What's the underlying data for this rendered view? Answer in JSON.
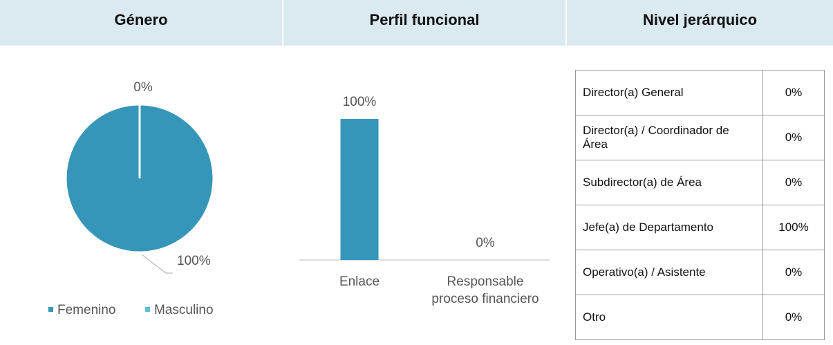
{
  "chart_data": [
    {
      "type": "pie",
      "title": "Género",
      "categories": [
        "Femenino",
        "Masculino"
      ],
      "values": [
        100,
        0
      ],
      "value_labels": [
        "100%",
        "0%"
      ],
      "colors": [
        "#3596b9",
        "#5dbfd0"
      ],
      "legend": "bottom"
    },
    {
      "type": "bar",
      "title": "Perfil funcional",
      "categories": [
        "Enlace",
        "Responsable proceso financiero"
      ],
      "values": [
        100,
        0
      ],
      "value_labels": [
        "100%",
        "0%"
      ],
      "color": "#3596b9"
    }
  ],
  "table": {
    "title": "Nivel jerárquico",
    "rows": [
      [
        "Director(a) General",
        "0%"
      ],
      [
        "Director(a) / Coordinador de Área",
        "0%"
      ],
      [
        "Subdirector(a) de Área",
        "0%"
      ],
      [
        "Jefe(a) de Departamento",
        "100%"
      ],
      [
        "Operativo(a) / Asistente",
        "0%"
      ],
      [
        "Otro",
        "0%"
      ]
    ]
  }
}
